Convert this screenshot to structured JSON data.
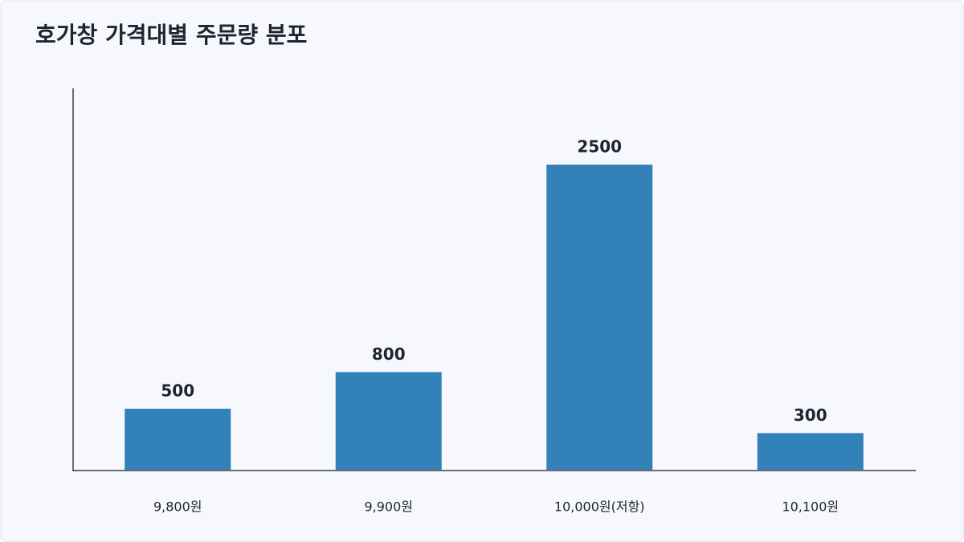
{
  "chart_data": {
    "type": "bar",
    "title": "호가창 가격대별 주문량 분포",
    "categories": [
      "9,800원",
      "9,900원",
      "10,000원(저항)",
      "10,100원"
    ],
    "values": [
      500,
      800,
      2500,
      300
    ],
    "color": "#3281b9",
    "ylim": [
      0,
      3125
    ]
  }
}
